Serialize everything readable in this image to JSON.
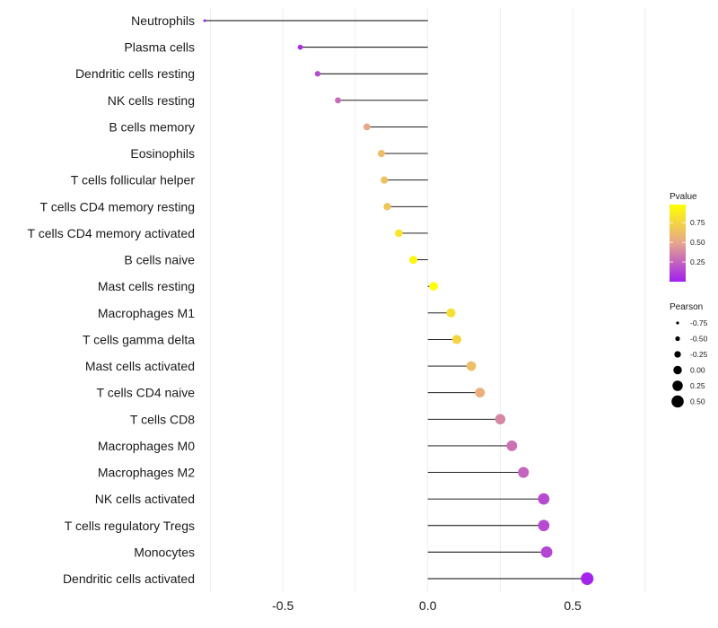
{
  "chart_data": {
    "type": "lollipop",
    "title": "",
    "xlabel": "",
    "ylabel": "",
    "xlim": [
      -0.77,
      0.8
    ],
    "x_ticks": [
      {
        "value": -0.5,
        "label": "-0.5"
      },
      {
        "value": 0.0,
        "label": "0.0"
      },
      {
        "value": 0.5,
        "label": "0.5"
      }
    ],
    "grid": true,
    "points": [
      {
        "label": "Neutrophils",
        "pearson": -0.77,
        "pvalue": 0.0
      },
      {
        "label": "Plasma cells",
        "pearson": -0.44,
        "pvalue": 0.05
      },
      {
        "label": "Dendritic cells resting",
        "pearson": -0.38,
        "pvalue": 0.15
      },
      {
        "label": "NK cells resting",
        "pearson": -0.31,
        "pvalue": 0.28
      },
      {
        "label": "B cells memory",
        "pearson": -0.21,
        "pvalue": 0.5
      },
      {
        "label": "Eosinophils",
        "pearson": -0.16,
        "pvalue": 0.62
      },
      {
        "label": "T cells follicular helper",
        "pearson": -0.15,
        "pvalue": 0.64
      },
      {
        "label": "T cells CD4 memory resting",
        "pearson": -0.14,
        "pvalue": 0.67
      },
      {
        "label": "T cells CD4 memory activated",
        "pearson": -0.1,
        "pvalue": 0.84
      },
      {
        "label": "B cells naive",
        "pearson": -0.05,
        "pvalue": 0.93
      },
      {
        "label": "Mast cells resting",
        "pearson": 0.02,
        "pvalue": 0.98
      },
      {
        "label": "Macrophages M1",
        "pearson": 0.08,
        "pvalue": 0.8
      },
      {
        "label": "T cells gamma delta",
        "pearson": 0.1,
        "pvalue": 0.75
      },
      {
        "label": "Mast cells activated",
        "pearson": 0.15,
        "pvalue": 0.63
      },
      {
        "label": "T cells CD4 naive",
        "pearson": 0.18,
        "pvalue": 0.55
      },
      {
        "label": "T cells CD8",
        "pearson": 0.25,
        "pvalue": 0.38
      },
      {
        "label": "Macrophages M0",
        "pearson": 0.29,
        "pvalue": 0.3
      },
      {
        "label": "Macrophages M2",
        "pearson": 0.33,
        "pvalue": 0.25
      },
      {
        "label": "NK cells activated",
        "pearson": 0.4,
        "pvalue": 0.16
      },
      {
        "label": "T cells regulatory  Tregs ",
        "pearson": 0.4,
        "pvalue": 0.16
      },
      {
        "label": "Monocytes",
        "pearson": 0.41,
        "pvalue": 0.14
      },
      {
        "label": "Dendritic cells activated",
        "pearson": 0.55,
        "pvalue": 0.02
      }
    ],
    "legend": {
      "color": {
        "title": "Pvalue",
        "ticks": [
          {
            "value": 0.25,
            "label": "0.25"
          },
          {
            "value": 0.5,
            "label": "0.50"
          },
          {
            "value": 0.75,
            "label": "0.75"
          }
        ],
        "range": [
          0.0,
          0.98
        ],
        "low_color": "#A020F0",
        "mid_color": "#E6A58E",
        "high_color": "#FFFF00"
      },
      "size": {
        "title": "Pearson",
        "entries": [
          {
            "value": -0.75,
            "label": "-0.75"
          },
          {
            "value": -0.5,
            "label": "-0.50"
          },
          {
            "value": -0.25,
            "label": "-0.25"
          },
          {
            "value": 0.0,
            "label": "0.00"
          },
          {
            "value": 0.25,
            "label": "0.25"
          },
          {
            "value": 0.5,
            "label": "0.50"
          }
        ]
      }
    }
  }
}
